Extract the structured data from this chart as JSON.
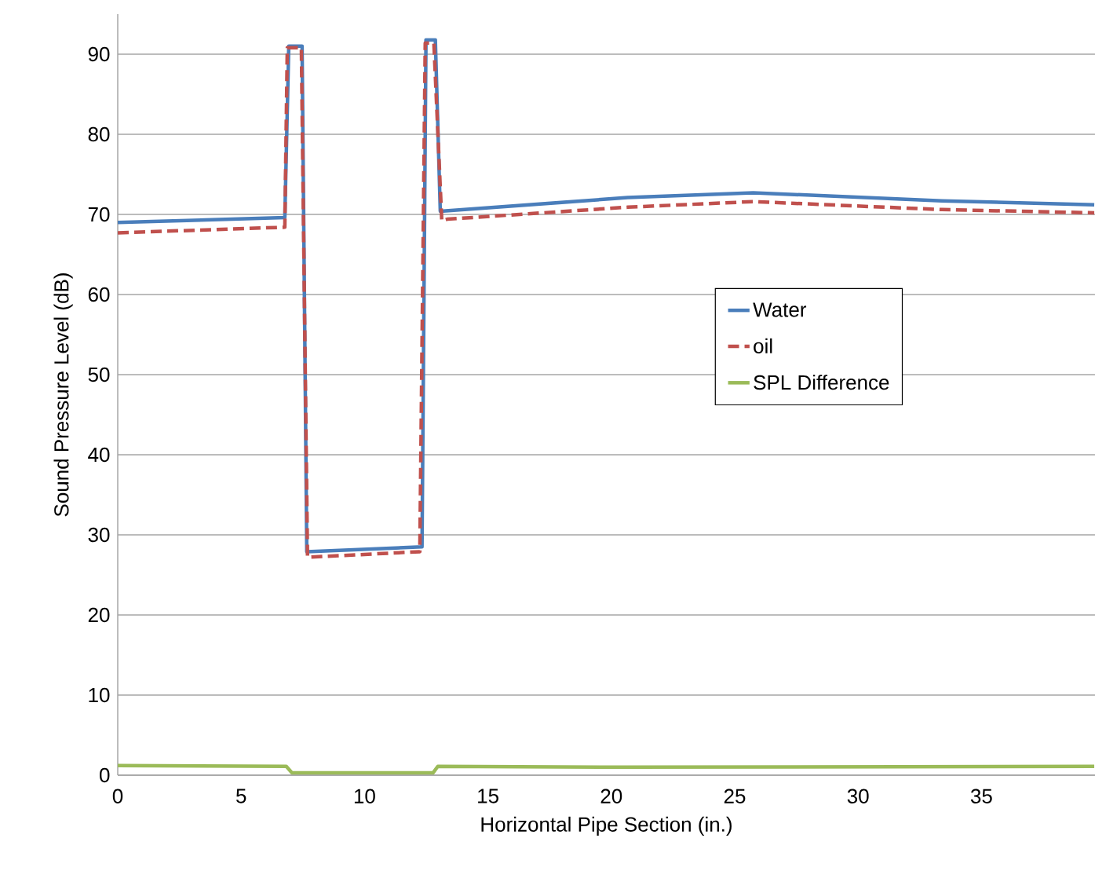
{
  "chart_data": {
    "type": "line",
    "xlabel": "Horizontal Pipe Section (in.)",
    "ylabel": "Sound Pressure Level (dB)",
    "xlim": [
      0,
      39.6
    ],
    "ylim": [
      0,
      95
    ],
    "xticks": [
      0,
      5,
      10,
      15,
      20,
      25,
      30,
      35
    ],
    "yticks": [
      0,
      10,
      20,
      30,
      40,
      50,
      60,
      70,
      80,
      90
    ],
    "grid": "y",
    "legend": "right",
    "marker": "none",
    "series": [
      {
        "name": "Water",
        "color": "#4a7ebb",
        "line_style": "solid",
        "x": [
          0,
          6.77,
          6.93,
          7.47,
          7.66,
          12.33,
          12.49,
          12.87,
          13.07,
          20.66,
          25.75,
          33.4,
          39.57
        ],
        "values": [
          69.0,
          69.6,
          91.0,
          91.0,
          27.9,
          28.5,
          91.8,
          91.8,
          70.4,
          72.1,
          72.7,
          71.7,
          71.2
        ]
      },
      {
        "name": "oil",
        "color": "#c0504d",
        "line_style": "dashed",
        "x": [
          0,
          6.77,
          6.87,
          7.44,
          7.69,
          12.24,
          12.46,
          12.81,
          13.13,
          13.35,
          20.66,
          25.75,
          33.4,
          39.57
        ],
        "values": [
          67.7,
          68.4,
          90.8,
          90.8,
          27.2,
          27.9,
          91.4,
          91.4,
          69.2,
          69.4,
          70.9,
          71.6,
          70.6,
          70.2
        ]
      },
      {
        "name": "SPL Difference",
        "color": "#9bbb59",
        "line_style": "solid",
        "x": [
          0,
          6.83,
          7.06,
          12.78,
          12.97,
          20.66,
          39.57
        ],
        "values": [
          1.2,
          1.1,
          0.3,
          0.3,
          1.1,
          1.0,
          1.1
        ]
      }
    ]
  }
}
